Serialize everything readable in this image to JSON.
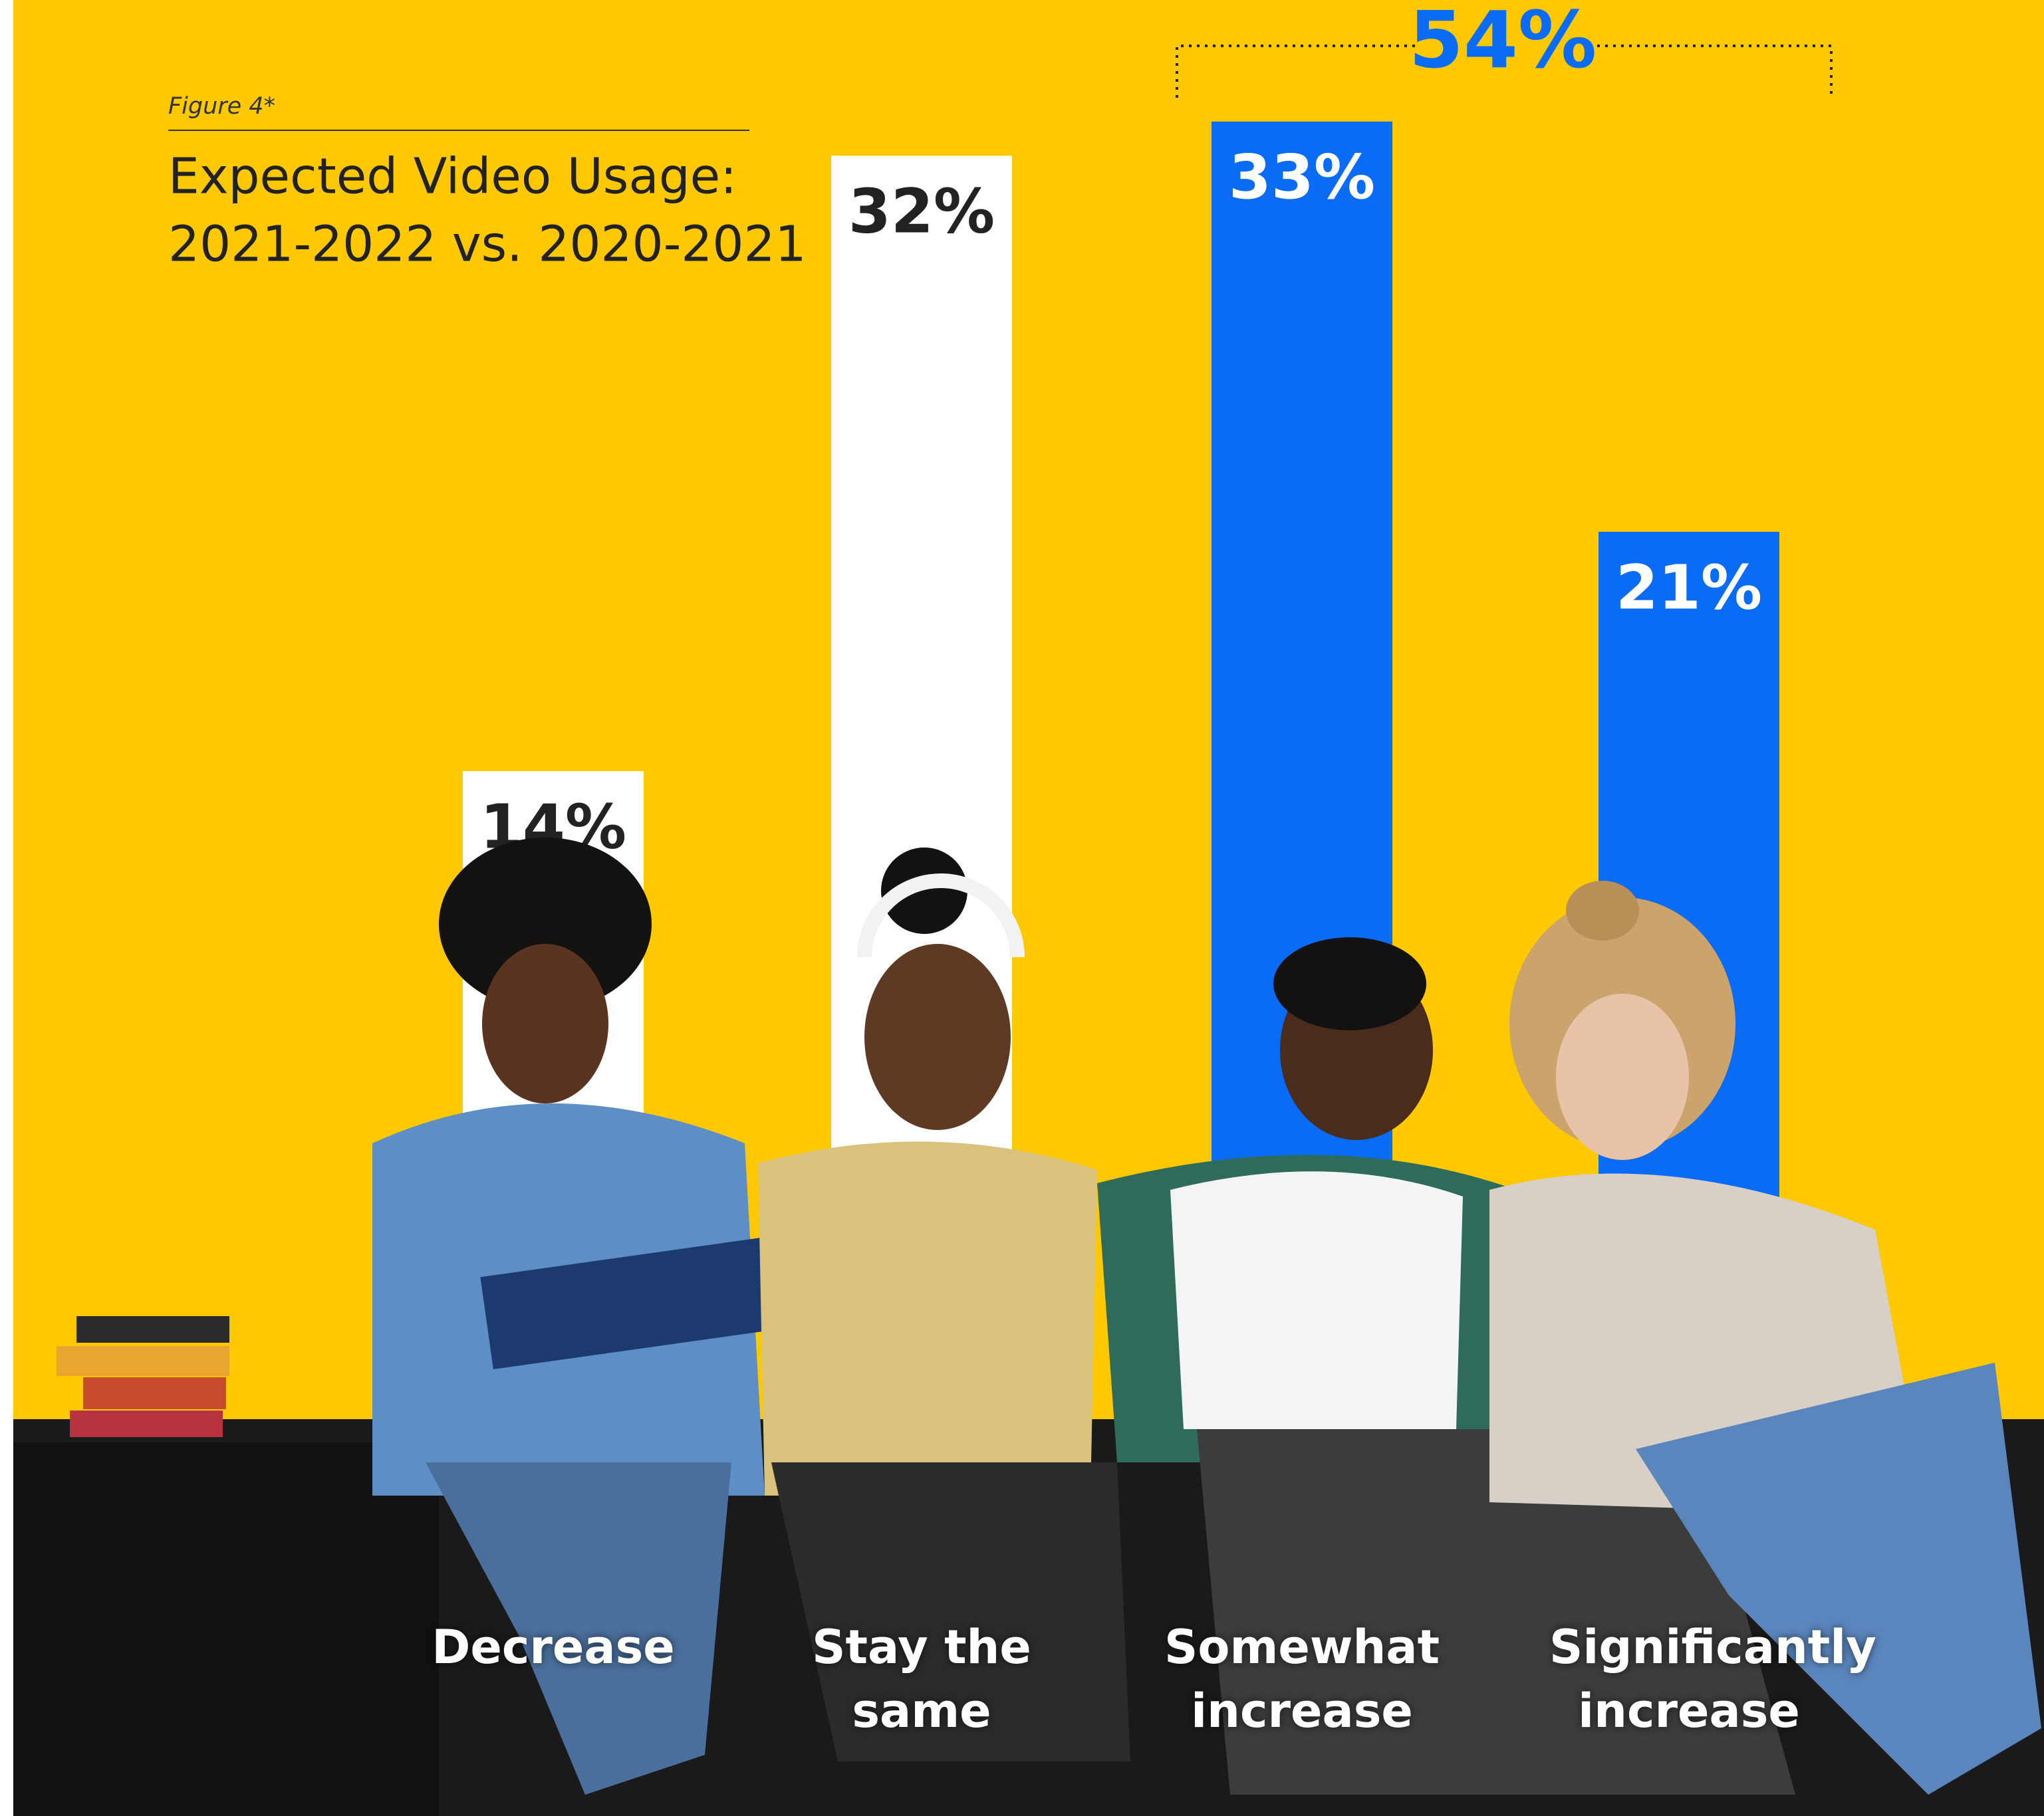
{
  "chart_data": {
    "type": "bar",
    "figure_label": "Figure 4*",
    "title": "Expected Video Usage:",
    "subtitle": "2021-2022 vs. 2020-2021",
    "categories": [
      "Decrease",
      "Stay the same",
      "Somewhat increase",
      "Significantly increase"
    ],
    "values": [
      14,
      32,
      33,
      21
    ],
    "value_labels": [
      "14%",
      "32%",
      "33%",
      "21%"
    ],
    "colors": [
      "#ffffff",
      "#ffffff",
      "#0a6cf5",
      "#0a6cf5"
    ],
    "ylim": [
      0,
      35
    ],
    "annotation": "54%",
    "annotation_color": "#0a6cf5"
  }
}
